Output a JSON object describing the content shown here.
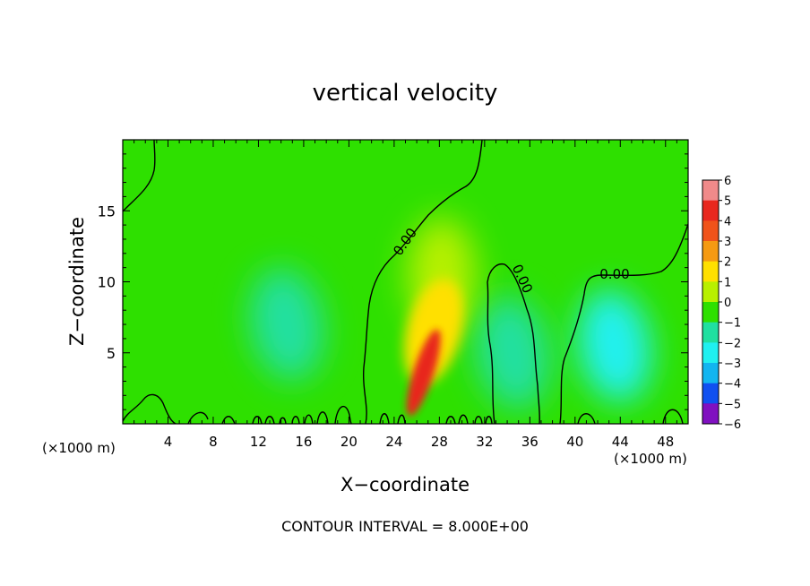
{
  "chart_data": {
    "type": "heatmap",
    "title": "vertical velocity",
    "xlabel": "X−coordinate",
    "ylabel": "Z−coordinate",
    "x_unit_left": "(×1000 m)",
    "x_unit_right": "(×1000 m)",
    "footer": "CONTOUR INTERVAL = 8.000E+00",
    "xlim": [
      0,
      50
    ],
    "ylim": [
      0,
      20
    ],
    "x_ticks": [
      4,
      8,
      12,
      16,
      20,
      24,
      28,
      32,
      36,
      40,
      44,
      48
    ],
    "x_tick_labels": [
      "4",
      "8",
      "12",
      "16",
      "20",
      "24",
      "28",
      "32",
      "36",
      "40",
      "44",
      "48"
    ],
    "y_ticks": [
      5,
      10,
      15
    ],
    "y_tick_labels": [
      "5",
      "10",
      "15"
    ],
    "colorbar": {
      "levels": [
        6,
        5,
        4,
        3,
        2,
        1,
        0,
        -1,
        -2,
        -3,
        -4,
        -5,
        -6
      ],
      "labels": [
        "6",
        "5",
        "4",
        "3",
        "2",
        "1",
        "0",
        "−1",
        "−2",
        "−3",
        "−4",
        "−5",
        "−6"
      ],
      "colors": [
        "#f08a8a",
        "#e8271e",
        "#f0531a",
        "#f59a12",
        "#ffe000",
        "#b8f000",
        "#2ee000",
        "#20e0a0",
        "#20f0f0",
        "#12b5f0",
        "#1050f0",
        "#1010d0",
        "#8010c0"
      ]
    },
    "background_value": 0.2,
    "features": [
      {
        "kind": "updraft_core",
        "x": 26.6,
        "z": 3.6,
        "value": 4.5
      },
      {
        "kind": "updraft_plume",
        "x": 27.5,
        "z": 6.5,
        "value": 1.5
      },
      {
        "kind": "updraft_shoulder",
        "x": 28.2,
        "z": 10.5,
        "value": 0.7
      },
      {
        "kind": "downdraft",
        "x": 14.5,
        "z": 7.0,
        "value": -0.7
      },
      {
        "kind": "downdraft",
        "x": 34.5,
        "z": 5.0,
        "value": -1.1
      },
      {
        "kind": "downdraft",
        "x": 43.5,
        "z": 5.5,
        "value": -1.6
      }
    ],
    "contour_labels": [
      {
        "text": "0.00",
        "x": 25.0,
        "z": 12.8
      },
      {
        "text": "0.00",
        "x": 35.3,
        "z": 10.2
      },
      {
        "text": "0.00",
        "x": 43.5,
        "z": 10.5
      }
    ]
  }
}
